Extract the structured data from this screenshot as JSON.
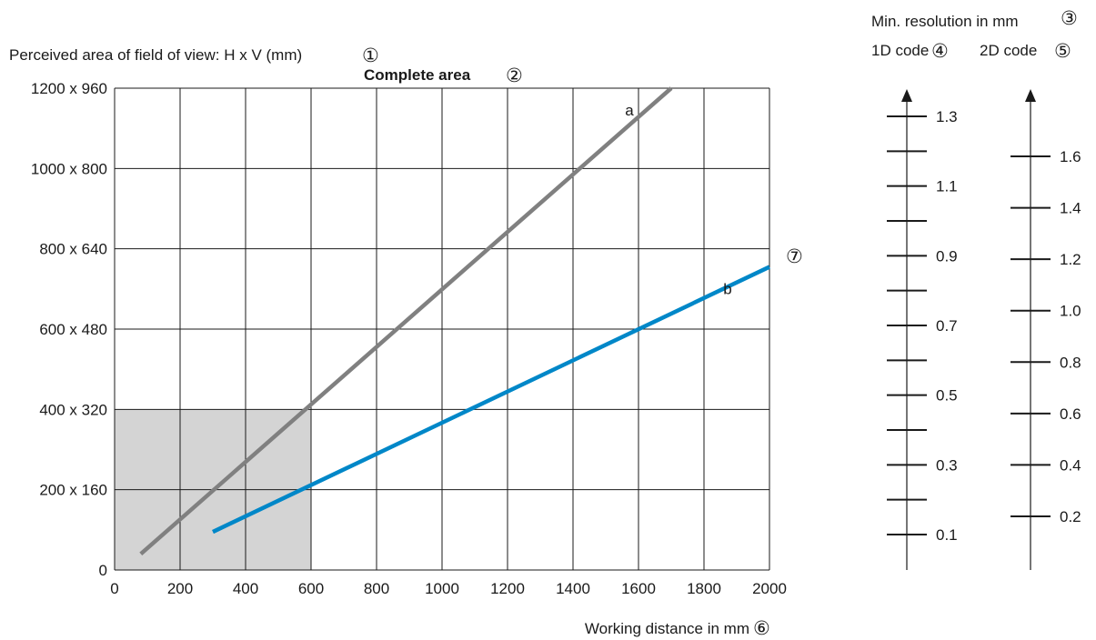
{
  "chart_data": {
    "type": "line",
    "y_axis_label": "Perceived area of field of view: H x V (mm)",
    "y_axis_marker": "①",
    "subtitle": "Complete area",
    "subtitle_marker": "②",
    "x_axis_label": "Working distance in mm",
    "x_axis_marker": "⑥",
    "x_ticks": [
      "0",
      "200",
      "400",
      "600",
      "800",
      "1000",
      "1200",
      "1400",
      "1600",
      "1800",
      "2000"
    ],
    "y_ticks": [
      "0",
      "200 x 160",
      "400 x 320",
      "600 x 480",
      "800 x 640",
      "1000 x 800",
      "1200 x 960"
    ],
    "xlim": [
      0,
      2000
    ],
    "ylim": [
      0,
      1200
    ],
    "grid": true,
    "highlight_region": {
      "x": [
        0,
        600
      ],
      "y": [
        0,
        400
      ],
      "color": "#d4d4d4"
    },
    "series": [
      {
        "name": "a",
        "color": "#808080",
        "x": [
          80,
          1700
        ],
        "y": [
          40,
          1200
        ]
      },
      {
        "name": "b",
        "color": "#0087c8",
        "x": [
          300,
          2000
        ],
        "y": [
          95,
          755
        ]
      }
    ],
    "series_marker": "⑦",
    "resolution_scale": {
      "title": "Min. resolution in mm",
      "title_marker": "③",
      "axis_1d": {
        "label": "1D code",
        "marker": "④",
        "range": [
          0.0,
          1.4
        ],
        "major": [
          0.1,
          0.3,
          0.5,
          0.7,
          0.9,
          1.1,
          1.3
        ],
        "minor": [
          0.2,
          0.4,
          0.6,
          0.8,
          1.0,
          1.2
        ]
      },
      "axis_2d": {
        "label": "2D code",
        "marker": "⑤",
        "range": [
          0.0,
          1.8
        ],
        "ticks": [
          0.2,
          0.4,
          0.6,
          0.8,
          1.0,
          1.2,
          1.4,
          1.6
        ]
      }
    }
  }
}
